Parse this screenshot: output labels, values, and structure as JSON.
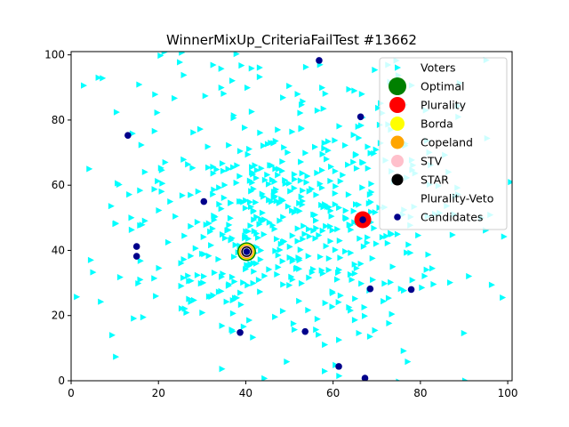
{
  "chart_data": {
    "type": "scatter",
    "title": "WinnerMixUp_CriteriaFailTest #13662",
    "xlabel": "",
    "ylabel": "",
    "xlim": [
      0,
      101
    ],
    "ylim": [
      0,
      101
    ],
    "x_ticks": [
      0,
      20,
      40,
      60,
      80,
      100
    ],
    "y_ticks": [
      0,
      20,
      40,
      60,
      80,
      100
    ],
    "grid": false,
    "legend_position": "top-right",
    "colors": {
      "voters": "#00ffff",
      "optimal": "#008000",
      "plurality": "#ff0000",
      "borda": "#ffff00",
      "copeland": "#ffa500",
      "stv": "#ffc0cb",
      "star": "#000000",
      "plurality_veto": "#ffffff",
      "candidates": "#00008b"
    },
    "legend": [
      {
        "key": "voters",
        "label": "Voters"
      },
      {
        "key": "optimal",
        "label": "Optimal"
      },
      {
        "key": "plurality",
        "label": "Plurality"
      },
      {
        "key": "borda",
        "label": "Borda"
      },
      {
        "key": "copeland",
        "label": "Copeland"
      },
      {
        "key": "stv",
        "label": "STV"
      },
      {
        "key": "star",
        "label": "STAR"
      },
      {
        "key": "plurality_veto",
        "label": "Plurality-Veto"
      },
      {
        "key": "candidates",
        "label": "Candidates"
      }
    ],
    "winners": [
      {
        "key": "optimal",
        "x": 40.2,
        "y": 39.6
      },
      {
        "key": "plurality",
        "x": 66.8,
        "y": 49.4
      },
      {
        "key": "borda",
        "x": 40.2,
        "y": 39.6
      },
      {
        "key": "copeland",
        "x": 40.2,
        "y": 39.6
      },
      {
        "key": "stv",
        "x": 40.2,
        "y": 39.6
      },
      {
        "key": "star",
        "x": 40.2,
        "y": 39.6
      },
      {
        "key": "plurality_veto",
        "x": 40.2,
        "y": 39.6
      }
    ],
    "candidates": [
      {
        "x": 56.8,
        "y": 98.3
      },
      {
        "x": 13.0,
        "y": 75.3
      },
      {
        "x": 66.3,
        "y": 81.0
      },
      {
        "x": 30.4,
        "y": 55.0
      },
      {
        "x": 66.8,
        "y": 49.4
      },
      {
        "x": 40.2,
        "y": 39.6
      },
      {
        "x": 15.0,
        "y": 41.2
      },
      {
        "x": 15.0,
        "y": 38.2
      },
      {
        "x": 68.5,
        "y": 28.2
      },
      {
        "x": 77.9,
        "y": 28.0
      },
      {
        "x": 38.7,
        "y": 14.8
      },
      {
        "x": 53.6,
        "y": 15.1
      },
      {
        "x": 61.3,
        "y": 4.4
      },
      {
        "x": 67.3,
        "y": 0.8
      }
    ],
    "voters": {
      "count": 600,
      "center": [
        50,
        50
      ],
      "spread": [
        17,
        18
      ],
      "note_visible": false
    }
  }
}
